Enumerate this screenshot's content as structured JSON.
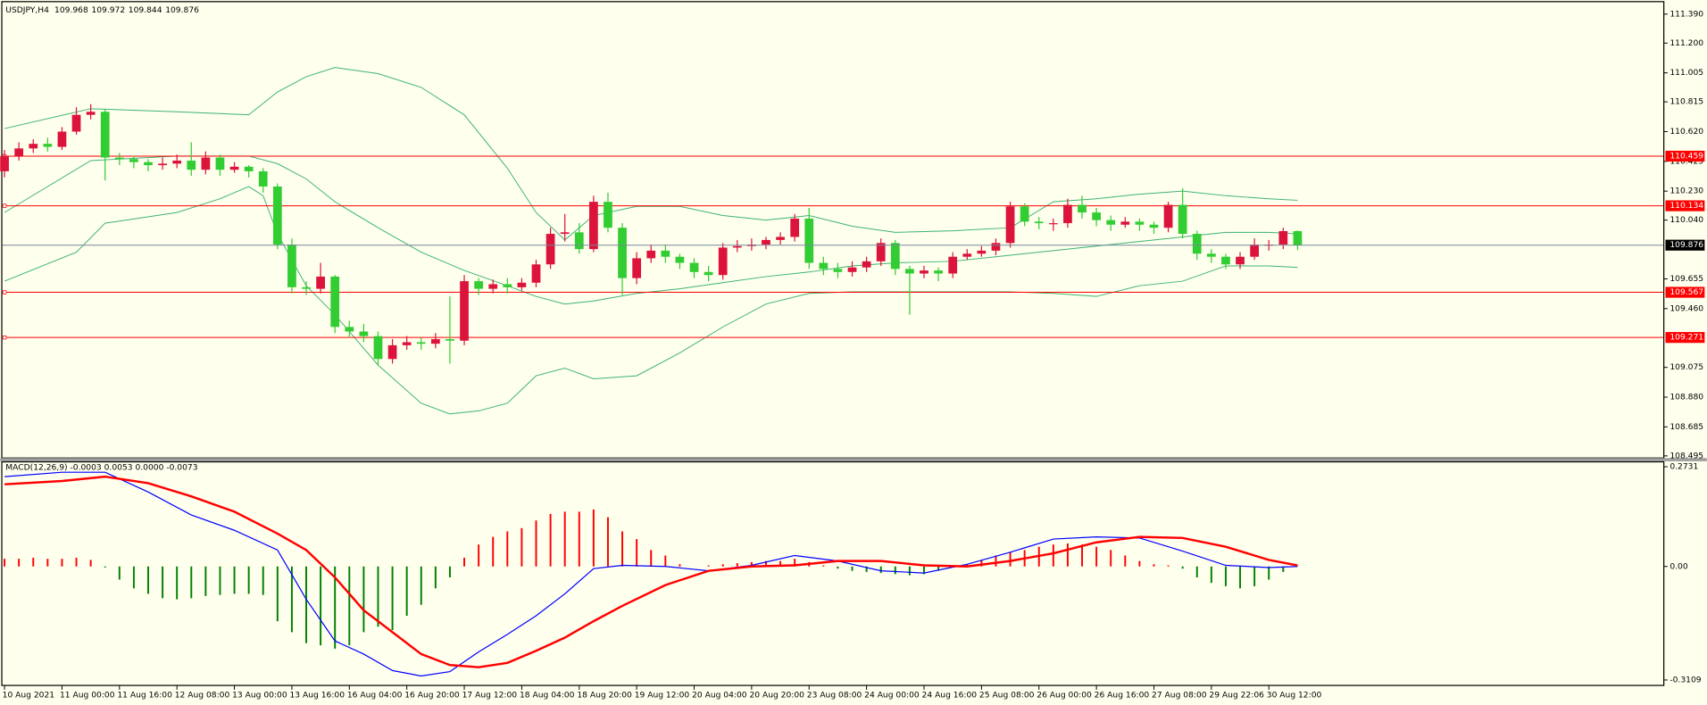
{
  "chart_data": {
    "type": "candlestick",
    "symbol": "USDJPY,H4",
    "categories": [
      "10 Aug 2021",
      null,
      null,
      null,
      "11 Aug 00:00",
      null,
      null,
      null,
      "11 Aug 16:00",
      null,
      null,
      null,
      "12 Aug 08:00",
      null,
      null,
      null,
      "13 Aug 00:00",
      null,
      null,
      null,
      "13 Aug 16:00",
      null,
      null,
      null,
      "16 Aug 04:00",
      null,
      null,
      null,
      "16 Aug 20:00",
      null,
      null,
      null,
      "17 Aug 12:00",
      null,
      null,
      null,
      "18 Aug 04:00",
      null,
      null,
      null,
      "18 Aug 20:00",
      null,
      null,
      null,
      "19 Aug 12:00",
      null,
      null,
      null,
      "20 Aug 04:00",
      null,
      null,
      null,
      "20 Aug 20:00",
      null,
      null,
      null,
      "23 Aug 08:00",
      null,
      null,
      null,
      "24 Aug 00:00",
      null,
      null,
      null,
      "24 Aug 16:00",
      null,
      null,
      null,
      "25 Aug 08:00",
      null,
      null,
      null,
      "26 Aug 00:00",
      null,
      null,
      null,
      "26 Aug 16:00",
      null,
      null,
      null,
      "27 Aug 08:00",
      null,
      null,
      null,
      "29 Aug 22:06",
      null,
      null,
      null,
      "30 Aug 12:00",
      null,
      null
    ],
    "candles": {
      "open": [
        110.36,
        110.46,
        110.51,
        110.54,
        110.52,
        110.62,
        110.73,
        110.75,
        110.45,
        110.44,
        110.42,
        110.4,
        110.41,
        110.43,
        110.37,
        110.45,
        110.37,
        110.39,
        110.36,
        110.26,
        109.88,
        109.6,
        109.59,
        109.67,
        109.34,
        109.31,
        109.28,
        109.13,
        109.22,
        109.24,
        109.23,
        109.26,
        109.25,
        109.64,
        109.59,
        109.62,
        109.6,
        109.63,
        109.75,
        109.95,
        109.96,
        109.85,
        110.16,
        109.99,
        109.66,
        109.79,
        109.84,
        109.8,
        109.76,
        109.7,
        109.68,
        109.86,
        109.87,
        109.88,
        109.91,
        109.93,
        110.05,
        109.76,
        109.72,
        109.7,
        109.73,
        109.77,
        109.89,
        109.72,
        109.69,
        109.71,
        109.69,
        109.8,
        109.82,
        109.84,
        109.89,
        110.13,
        110.03,
        110.02,
        110.02,
        110.14,
        110.09,
        110.04,
        110.01,
        110.03,
        110.01,
        109.99,
        110.14,
        109.95,
        109.82,
        109.8,
        109.75,
        109.8,
        109.88,
        109.88,
        109.968
      ],
      "high": [
        110.5,
        110.55,
        110.57,
        110.58,
        110.65,
        110.78,
        110.8,
        110.77,
        110.48,
        110.46,
        110.44,
        110.45,
        110.47,
        110.55,
        110.49,
        110.47,
        110.42,
        110.4,
        110.38,
        110.28,
        109.92,
        109.64,
        109.76,
        109.68,
        109.38,
        109.36,
        109.31,
        109.26,
        109.28,
        109.27,
        109.3,
        109.54,
        109.68,
        109.66,
        109.65,
        109.66,
        109.66,
        109.78,
        109.99,
        110.08,
        110.02,
        110.2,
        110.22,
        110.02,
        109.83,
        109.88,
        109.88,
        109.82,
        109.79,
        109.74,
        109.89,
        109.91,
        109.92,
        109.93,
        109.96,
        110.08,
        110.12,
        109.8,
        109.76,
        109.77,
        109.8,
        109.92,
        109.91,
        109.74,
        109.74,
        109.73,
        109.83,
        109.85,
        109.87,
        109.92,
        110.16,
        110.15,
        110.06,
        110.05,
        110.18,
        110.2,
        110.12,
        110.07,
        110.06,
        110.05,
        110.03,
        110.16,
        110.25,
        109.97,
        109.85,
        109.82,
        109.83,
        109.92,
        109.91,
        109.99,
        109.972
      ],
      "low": [
        110.32,
        110.43,
        110.48,
        110.49,
        110.5,
        110.6,
        110.7,
        110.3,
        110.4,
        110.38,
        110.36,
        110.37,
        110.38,
        110.33,
        110.34,
        110.33,
        110.35,
        110.32,
        110.22,
        109.85,
        109.56,
        109.55,
        109.56,
        109.3,
        109.27,
        109.24,
        109.09,
        109.1,
        109.19,
        109.19,
        109.2,
        109.1,
        109.22,
        109.55,
        109.56,
        109.56,
        109.58,
        109.6,
        109.72,
        109.9,
        109.82,
        109.83,
        109.96,
        109.55,
        109.62,
        109.76,
        109.76,
        109.72,
        109.66,
        109.64,
        109.65,
        109.83,
        109.84,
        109.85,
        109.88,
        109.9,
        109.72,
        109.68,
        109.66,
        109.67,
        109.7,
        109.74,
        109.68,
        109.42,
        109.66,
        109.64,
        109.66,
        109.78,
        109.8,
        109.81,
        109.86,
        110.0,
        109.98,
        109.97,
        109.99,
        110.05,
        110.0,
        109.97,
        109.99,
        109.97,
        109.95,
        109.96,
        109.92,
        109.78,
        109.76,
        109.72,
        109.72,
        109.78,
        109.84,
        109.85,
        109.844
      ],
      "close": [
        110.46,
        110.51,
        110.54,
        110.52,
        110.62,
        110.73,
        110.75,
        110.45,
        110.44,
        110.42,
        110.4,
        110.41,
        110.43,
        110.37,
        110.45,
        110.37,
        110.39,
        110.36,
        110.26,
        109.88,
        109.6,
        109.59,
        109.67,
        109.34,
        109.31,
        109.28,
        109.13,
        109.22,
        109.24,
        109.23,
        109.26,
        109.25,
        109.64,
        109.59,
        109.62,
        109.6,
        109.63,
        109.75,
        109.95,
        109.96,
        109.85,
        110.16,
        109.99,
        109.66,
        109.79,
        109.84,
        109.8,
        109.76,
        109.7,
        109.68,
        109.86,
        109.87,
        109.88,
        109.91,
        109.93,
        110.05,
        109.76,
        109.72,
        109.7,
        109.73,
        109.77,
        109.89,
        109.72,
        109.69,
        109.71,
        109.69,
        109.8,
        109.82,
        109.84,
        109.89,
        110.13,
        110.03,
        110.02,
        110.02,
        110.14,
        110.09,
        110.04,
        110.01,
        110.03,
        110.01,
        109.99,
        110.14,
        109.95,
        109.82,
        109.8,
        109.75,
        109.8,
        109.88,
        109.88,
        109.968,
        109.876
      ]
    },
    "up_color": "#dc143c",
    "down_color": "#32cd32",
    "ylim": [
      108.481,
      111.461
    ],
    "yticks": [
      {
        "value": 111.39,
        "label": "111.390"
      },
      {
        "value": 111.2,
        "label": "111.200"
      },
      111.005,
      110.815,
      {
        "value": 110.62,
        "label": "110.620"
      },
      110.425,
      {
        "value": 110.23,
        "label": "110.230"
      },
      {
        "value": 110.04,
        "label": "110.040"
      },
      109.655,
      {
        "value": 109.46,
        "label": "109.460"
      },
      109.075,
      {
        "value": 108.88,
        "label": "108.880"
      },
      108.685,
      108.495
    ],
    "bands": {
      "color": "#3cb371",
      "upper": {
        "x": [
          0,
          6,
          12,
          17,
          19,
          21,
          23,
          26,
          29,
          32,
          35,
          37,
          39,
          41,
          44,
          47,
          50,
          53,
          56,
          59,
          62,
          66,
          70,
          73,
          76,
          79,
          82,
          85,
          88,
          90
        ],
        "values": [
          110.64,
          110.77,
          110.75,
          110.73,
          110.88,
          110.98,
          111.04,
          111.0,
          110.91,
          110.73,
          110.38,
          110.09,
          109.91,
          110.07,
          110.13,
          110.13,
          110.07,
          110.04,
          110.07,
          110.0,
          109.96,
          109.97,
          109.99,
          110.16,
          110.18,
          110.21,
          110.23,
          110.2,
          110.18,
          110.17
        ]
      },
      "middle": {
        "x": [
          0,
          6,
          12,
          17,
          19,
          21,
          23,
          26,
          29,
          32,
          35,
          37,
          39,
          41,
          44,
          47,
          50,
          53,
          56,
          59,
          62,
          66,
          70,
          73,
          76,
          79,
          82,
          85,
          88,
          90
        ],
        "values": [
          110.09,
          110.43,
          110.46,
          110.46,
          110.41,
          110.31,
          110.16,
          109.99,
          109.83,
          109.71,
          109.61,
          109.54,
          109.49,
          109.51,
          109.56,
          109.59,
          109.63,
          109.67,
          109.7,
          109.74,
          109.76,
          109.77,
          109.81,
          109.84,
          109.87,
          109.9,
          109.93,
          109.96,
          109.96,
          109.95
        ]
      },
      "lower": {
        "x": [
          0,
          5,
          7,
          12,
          15,
          17,
          18,
          19,
          21,
          23,
          26,
          29,
          31,
          33,
          35,
          37,
          39,
          41,
          44,
          47,
          50,
          53,
          56,
          59,
          62,
          66,
          70,
          73,
          76,
          79,
          82,
          85,
          88,
          90
        ],
        "values": [
          109.64,
          109.83,
          110.02,
          110.09,
          110.18,
          110.26,
          110.2,
          109.95,
          109.61,
          109.42,
          109.09,
          108.84,
          108.77,
          108.79,
          108.84,
          109.02,
          109.07,
          109.0,
          109.02,
          109.17,
          109.34,
          109.49,
          109.56,
          109.57,
          109.57,
          109.57,
          109.57,
          109.56,
          109.54,
          109.61,
          109.64,
          109.74,
          109.74,
          109.73
        ]
      }
    },
    "levels": {
      "color": "#ff0000",
      "values": [
        110.459,
        110.134,
        109.567,
        109.271
      ]
    },
    "last_price_color": "#778899",
    "indicator": {
      "label": "MACD(12,26,9) -0.0003 0.0053 0.0000 -0.0073",
      "ylim": [
        -0.3109,
        0.2731
      ],
      "yticks": [
        0.2731,
        {
          "value": 0,
          "label": "0.00"
        },
        -0.3109
      ],
      "up_color": "#ff0000",
      "down_color": "#008000",
      "histogram": [
        0.021,
        0.021,
        0.024,
        0.021,
        0.021,
        0.024,
        0.018,
        -0.003,
        -0.036,
        -0.06,
        -0.075,
        -0.087,
        -0.09,
        -0.087,
        -0.081,
        -0.078,
        -0.075,
        -0.075,
        -0.078,
        -0.15,
        -0.18,
        -0.21,
        -0.216,
        -0.225,
        -0.216,
        -0.18,
        -0.165,
        -0.174,
        -0.135,
        -0.105,
        -0.06,
        -0.03,
        0.024,
        0.06,
        0.081,
        0.096,
        0.105,
        0.126,
        0.144,
        0.15,
        0.15,
        0.156,
        0.135,
        0.096,
        0.075,
        0.045,
        0.03,
        0.006,
        0.0,
        0.003,
        0.006,
        0.009,
        0.012,
        0.015,
        0.015,
        0.021,
        0.012,
        0.003,
        -0.006,
        -0.012,
        -0.015,
        -0.018,
        -0.021,
        -0.024,
        -0.021,
        -0.012,
        -0.003,
        0.006,
        0.018,
        0.03,
        0.039,
        0.045,
        0.054,
        0.06,
        0.063,
        0.06,
        0.054,
        0.045,
        0.03,
        0.015,
        0.006,
        0.003,
        -0.006,
        -0.03,
        -0.045,
        -0.054,
        -0.06,
        -0.054,
        -0.036,
        -0.015,
        -0.0003
      ],
      "lines": [
        {
          "color": "#0000ff",
          "x": [
            0,
            4,
            7,
            10,
            13,
            16,
            19,
            21,
            23,
            25,
            27,
            29,
            31,
            33,
            35,
            37,
            39,
            41,
            43,
            46,
            49,
            52,
            55,
            58,
            61,
            64,
            67,
            70,
            73,
            76,
            79,
            82,
            85,
            88,
            90
          ],
          "values": [
            0.246,
            0.258,
            0.258,
            0.204,
            0.141,
            0.099,
            0.045,
            -0.09,
            -0.204,
            -0.24,
            -0.285,
            -0.3,
            -0.288,
            -0.234,
            -0.186,
            -0.135,
            -0.075,
            -0.006,
            0.003,
            0.0,
            -0.012,
            0.003,
            0.03,
            0.015,
            -0.012,
            -0.018,
            0.006,
            0.039,
            0.075,
            0.081,
            0.078,
            0.042,
            0.003,
            -0.003,
            0.0
          ]
        },
        {
          "color": "#ff0000",
          "x": [
            0,
            4,
            7,
            10,
            13,
            16,
            19,
            21,
            23,
            25,
            27,
            29,
            31,
            33,
            35,
            37,
            39,
            41,
            43,
            46,
            49,
            52,
            55,
            58,
            61,
            64,
            67,
            70,
            73,
            76,
            79,
            82,
            85,
            88,
            90
          ],
          "values": [
            0.225,
            0.234,
            0.246,
            0.228,
            0.192,
            0.15,
            0.09,
            0.045,
            -0.03,
            -0.12,
            -0.18,
            -0.24,
            -0.27,
            -0.276,
            -0.264,
            -0.231,
            -0.195,
            -0.15,
            -0.108,
            -0.051,
            -0.012,
            0.0,
            0.003,
            0.015,
            0.015,
            0.003,
            0.0,
            0.015,
            0.036,
            0.066,
            0.081,
            0.078,
            0.054,
            0.018,
            0.003
          ]
        }
      ]
    }
  }
}
